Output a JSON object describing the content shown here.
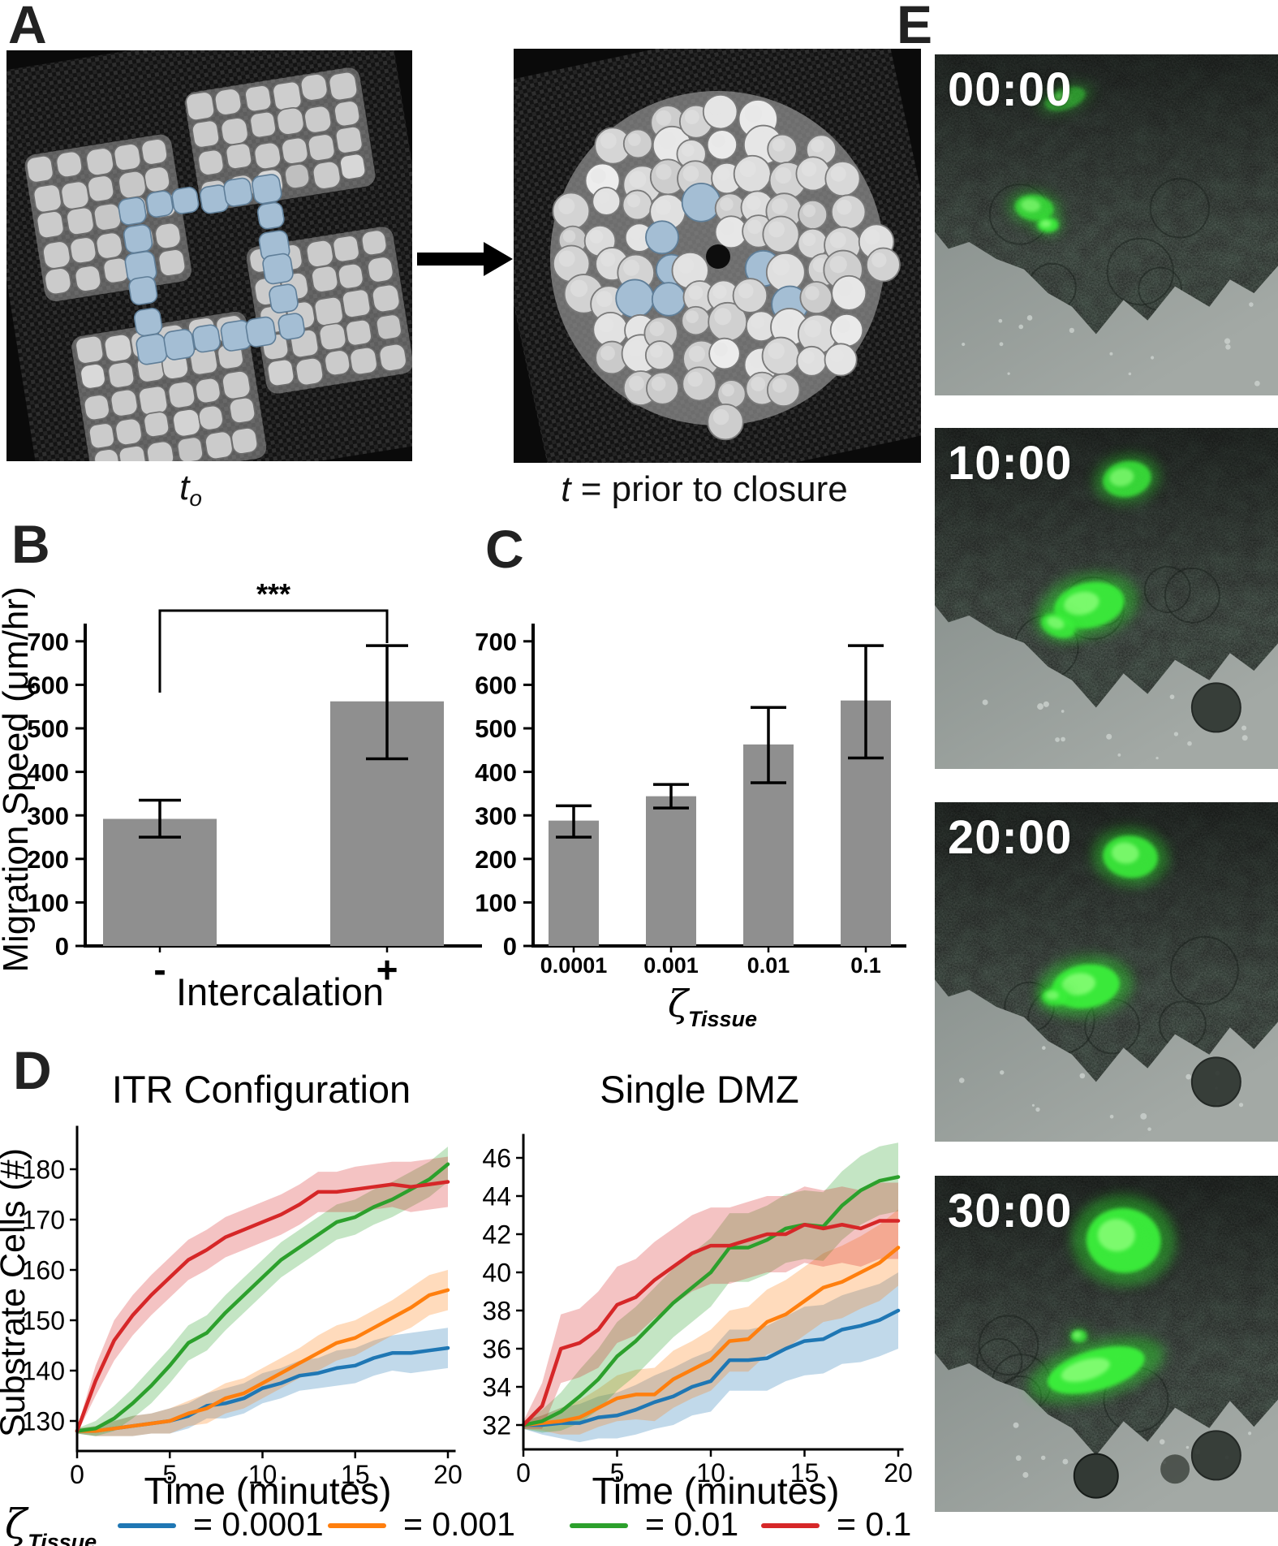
{
  "figure": {
    "panel_labels": {
      "A": "A",
      "B": "B",
      "C": "C",
      "D": "D",
      "E": "E"
    }
  },
  "panelA": {
    "caption_t0_main": "t",
    "caption_t0_sub": "o",
    "caption_closure_italic": "t",
    "caption_closure_rest": " = prior to closure",
    "colors": {
      "tissue_grey": "#cbcbcb",
      "intercalating_blue": "#a4bed4",
      "substrate_dark": "#141414"
    }
  },
  "chart_data": [
    {
      "id": "migration-speed-intercalation",
      "type": "bar",
      "ylabel": "Migration Speed (μm/hr)",
      "xlabel": "Intercalation",
      "categories": [
        "-",
        "+"
      ],
      "values": [
        292,
        562
      ],
      "err_low": [
        42,
        132
      ],
      "err_high": [
        43,
        128
      ],
      "yticks": [
        0,
        100,
        200,
        300,
        400,
        500,
        600,
        700
      ],
      "ylim": [
        0,
        740
      ],
      "bar_color": "#8f8f8f",
      "significance": "***",
      "grid": false
    },
    {
      "id": "migration-speed-zeta",
      "type": "bar",
      "ylabel": "",
      "xlabel_symbol": "ζ",
      "xlabel_symbol_sub": "Tissue",
      "categories": [
        "0.0001",
        "0.001",
        "0.01",
        "0.1"
      ],
      "values": [
        288,
        344,
        463,
        564
      ],
      "err_low": [
        38,
        27,
        88,
        132
      ],
      "err_high": [
        34,
        27,
        85,
        126
      ],
      "yticks": [
        0,
        100,
        200,
        300,
        400,
        500,
        600,
        700
      ],
      "ylim": [
        0,
        740
      ],
      "bar_color": "#8f8f8f",
      "grid": false
    },
    {
      "id": "substrate-cells-itr",
      "type": "line",
      "title": "ITR Configuration",
      "ylabel": "Substrate Cells (#)",
      "xlabel": "Time (minutes)",
      "x": [
        0,
        1,
        2,
        3,
        4,
        5,
        6,
        7,
        8,
        9,
        10,
        11,
        12,
        13,
        14,
        15,
        16,
        17,
        18,
        19,
        20
      ],
      "xticks": [
        0,
        5,
        10,
        15,
        20
      ],
      "yticks": [
        130,
        140,
        150,
        160,
        170,
        180
      ],
      "ylim": [
        124,
        188
      ],
      "grid": false,
      "legend_position": "bottom",
      "series": [
        {
          "name": "= 0.0001",
          "color": "#1f77b4",
          "values": [
            128,
            128,
            128.5,
            129,
            129.5,
            130,
            131,
            133,
            133.5,
            134.5,
            136.5,
            137.5,
            139,
            139.5,
            140.5,
            141,
            142.5,
            143.5,
            143.5,
            144,
            144.5
          ],
          "spread": [
            0.5,
            1,
            1.5,
            2,
            2,
            2.5,
            2.5,
            2.5,
            3,
            3,
            3,
            3,
            3,
            3,
            3.5,
            3.5,
            3.5,
            3.5,
            4,
            4,
            4
          ]
        },
        {
          "name": "= 0.001",
          "color": "#ff7f0e",
          "values": [
            128,
            128,
            128.5,
            129,
            129.5,
            130,
            131.5,
            132.5,
            134.5,
            135.5,
            137.5,
            139.5,
            141.5,
            143.5,
            145.5,
            146.5,
            148.5,
            150.5,
            152.5,
            155,
            156
          ],
          "spread": [
            0.5,
            1,
            1.5,
            2,
            2,
            2.5,
            2.5,
            3,
            3,
            3,
            3,
            3,
            3,
            3.5,
            3.5,
            3.5,
            3.5,
            3.5,
            4,
            4,
            4
          ]
        },
        {
          "name": "= 0.01",
          "color": "#2ca02c",
          "values": [
            128,
            128.5,
            130.5,
            133.5,
            137,
            141,
            145.5,
            147.5,
            151.5,
            155,
            158.5,
            162,
            164.5,
            167,
            169.5,
            170.5,
            172.5,
            174,
            176,
            178,
            181
          ],
          "spread": [
            0.5,
            1.5,
            2.5,
            3,
            3.5,
            3.5,
            3.5,
            3.5,
            3.5,
            3.5,
            3.5,
            3.5,
            3.5,
            3.5,
            3.5,
            3.5,
            3.5,
            3.5,
            3.5,
            3.5,
            3.5
          ]
        },
        {
          "name": "= 0.1",
          "color": "#d62728",
          "values": [
            128,
            138,
            146,
            151,
            155,
            158.5,
            162,
            164,
            166.5,
            168,
            169.5,
            171,
            173,
            175.5,
            175.5,
            176,
            176.5,
            177,
            176.5,
            177,
            177.5
          ],
          "spread": [
            0.5,
            3,
            4,
            4,
            4,
            4,
            4,
            4,
            4,
            4,
            4,
            4,
            4,
            4,
            4,
            4.5,
            4.5,
            4.5,
            5,
            5,
            5
          ]
        }
      ]
    },
    {
      "id": "substrate-cells-dmz",
      "type": "line",
      "title": "Single DMZ",
      "ylabel": "",
      "xlabel": "Time (minutes)",
      "x": [
        0,
        1,
        2,
        3,
        4,
        5,
        6,
        7,
        8,
        9,
        10,
        11,
        12,
        13,
        14,
        15,
        16,
        17,
        18,
        19,
        20
      ],
      "xticks": [
        0,
        5,
        10,
        15,
        20
      ],
      "yticks": [
        32,
        34,
        36,
        38,
        40,
        42,
        44,
        46
      ],
      "ylim": [
        30.7,
        47.2
      ],
      "grid": false,
      "series": [
        {
          "name": "= 0.0001",
          "color": "#1f77b4",
          "values": [
            32,
            32,
            32.1,
            32.1,
            32.4,
            32.5,
            32.8,
            33.2,
            33.5,
            34,
            34.3,
            35.4,
            35.4,
            35.5,
            36,
            36.4,
            36.5,
            37,
            37.2,
            37.5,
            38
          ],
          "spread": [
            0.2,
            0.5,
            0.8,
            1,
            1.1,
            1.2,
            1.3,
            1.4,
            1.5,
            1.5,
            1.6,
            1.6,
            1.6,
            1.7,
            1.7,
            1.8,
            1.8,
            1.8,
            1.9,
            1.9,
            2
          ]
        },
        {
          "name": "= 0.001",
          "color": "#ff7f0e",
          "values": [
            32,
            32.1,
            32.2,
            32.4,
            32.9,
            33.4,
            33.6,
            33.6,
            34.4,
            34.9,
            35.4,
            36.4,
            36.5,
            37.4,
            37.8,
            38.5,
            39.2,
            39.5,
            40,
            40.5,
            41.3
          ],
          "spread": [
            0.2,
            0.4,
            0.7,
            0.9,
            1,
            1.2,
            1.3,
            1.4,
            1.5,
            1.5,
            1.6,
            1.6,
            1.7,
            1.7,
            1.8,
            1.8,
            1.8,
            1.9,
            1.9,
            2,
            2
          ]
        },
        {
          "name": "= 0.01",
          "color": "#2ca02c",
          "values": [
            32,
            32.2,
            32.7,
            33.5,
            34.4,
            35.6,
            36.4,
            37.4,
            38.4,
            39.2,
            40,
            41.3,
            41.3,
            41.7,
            42.3,
            42.5,
            42.4,
            43.5,
            44.3,
            44.8,
            45
          ],
          "spread": [
            0.2,
            0.6,
            1,
            1.4,
            1.6,
            1.8,
            1.8,
            1.8,
            1.8,
            1.8,
            1.8,
            1.8,
            1.8,
            1.8,
            1.8,
            1.8,
            1.8,
            1.8,
            1.8,
            1.8,
            1.8
          ]
        },
        {
          "name": "= 0.1",
          "color": "#d62728",
          "values": [
            32,
            33,
            36,
            36.3,
            37,
            38.3,
            38.7,
            39.6,
            40.3,
            41,
            41.4,
            41.4,
            41.7,
            42,
            42,
            42.5,
            42.3,
            42.5,
            42.3,
            42.7,
            42.7
          ],
          "spread": [
            0.2,
            1.2,
            1.8,
            1.8,
            2,
            2,
            2,
            2,
            2,
            2,
            2,
            2,
            2,
            2,
            2,
            2,
            2,
            2,
            2,
            2,
            2
          ]
        }
      ]
    }
  ],
  "panelE": {
    "timestamps": [
      "00:00",
      "10:00",
      "20:00",
      "30:00"
    ]
  },
  "legend": {
    "symbol": "ζ",
    "symbol_sub": "Tissue",
    "entries": [
      {
        "label": "= 0.0001",
        "color": "#1f77b4"
      },
      {
        "label": "= 0.001",
        "color": "#ff7f0e"
      },
      {
        "label": "= 0.01",
        "color": "#2ca02c"
      },
      {
        "label": "= 0.1",
        "color": "#d62728"
      }
    ]
  }
}
